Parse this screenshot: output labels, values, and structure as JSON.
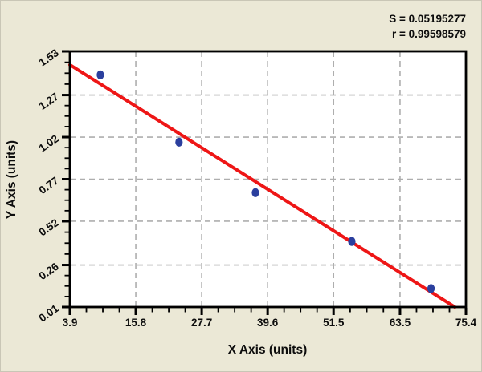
{
  "stats": {
    "s": "S = 0.05195277",
    "r": "r = 0.99598579"
  },
  "chart_data": {
    "type": "scatter",
    "title": "",
    "xlabel": "X Axis (units)",
    "ylabel": "Y Axis (units)",
    "xlim": [
      3.9,
      75.4
    ],
    "ylim": [
      0.01,
      1.53
    ],
    "x_tick_labels": [
      "3.9",
      "15.8",
      "27.7",
      "39.6",
      "51.5",
      "63.5",
      "75.4"
    ],
    "y_tick_labels": [
      "0.01",
      "0.26",
      "0.52",
      "0.77",
      "1.02",
      "1.27",
      "1.53"
    ],
    "minor_ticks_between_majors": 3,
    "grid": "dashed lines at interior major ticks, both axes",
    "legend_position": "none",
    "points": [
      {
        "x": 9.4,
        "y": 1.39
      },
      {
        "x": 23.6,
        "y": 0.99
      },
      {
        "x": 37.4,
        "y": 0.69
      },
      {
        "x": 54.8,
        "y": 0.4
      },
      {
        "x": 69.1,
        "y": 0.12
      }
    ],
    "fit_line": {
      "x1": 3.9,
      "y1": 1.45,
      "x2": 73.4,
      "y2": 0.01
    },
    "colors": {
      "background": "#ebe8d6",
      "plot_background": "#ffffff",
      "fit_line": "#ee1616",
      "point_fill": "#2b3f9e",
      "grid_line": "#aeaeae",
      "axis": "#000000",
      "text": "#0d0d0d"
    }
  }
}
